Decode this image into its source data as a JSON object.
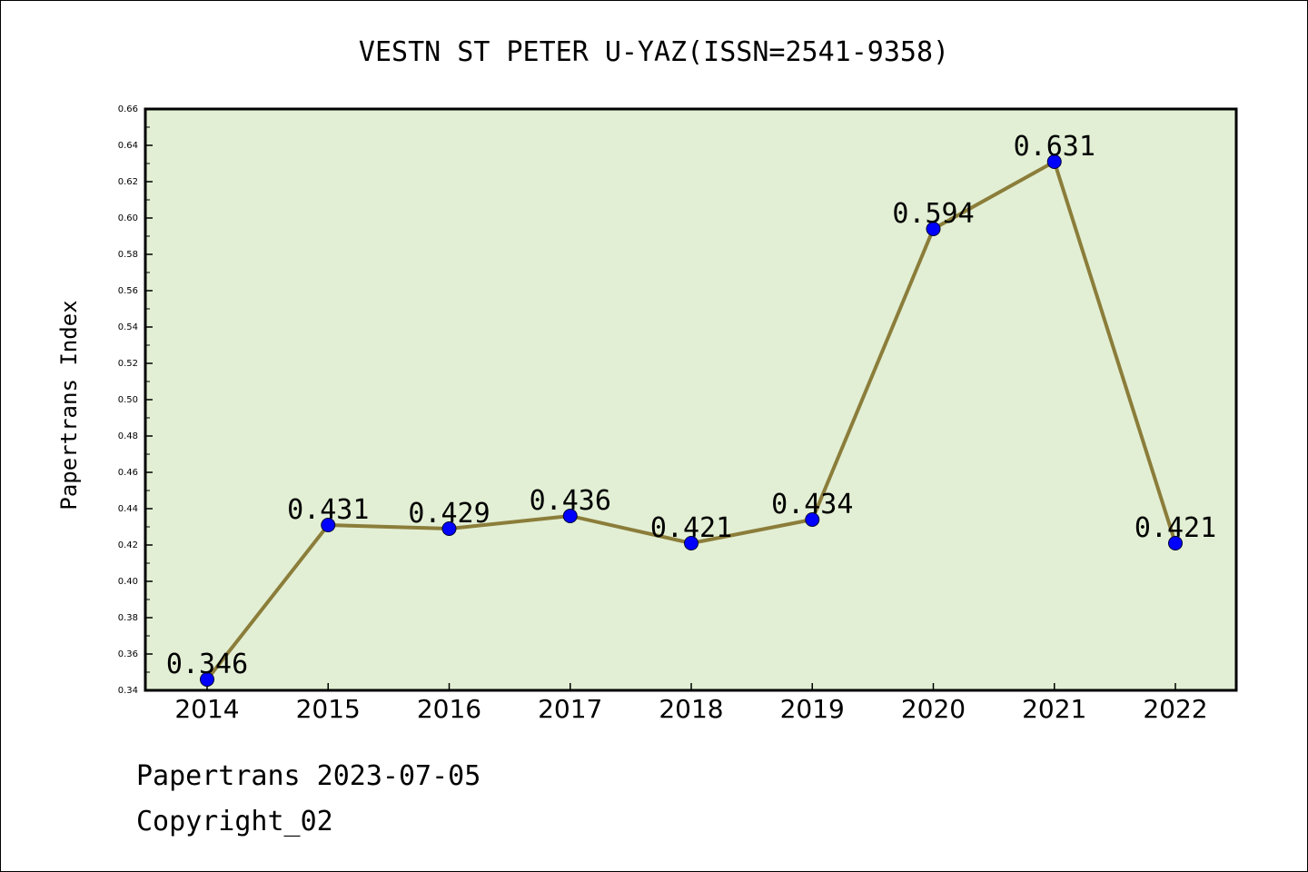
{
  "chart_data": {
    "type": "line",
    "title": "VESTN ST PETER U-YAZ(ISSN=2541-9358)",
    "xlabel": "",
    "ylabel": "Papertrans Index",
    "categories": [
      "2014",
      "2015",
      "2016",
      "2017",
      "2018",
      "2019",
      "2020",
      "2021",
      "2022"
    ],
    "values": [
      0.346,
      0.431,
      0.429,
      0.436,
      0.421,
      0.434,
      0.594,
      0.631,
      0.421
    ],
    "data_labels": [
      "0.346",
      "0.431",
      "0.429",
      "0.436",
      "0.421",
      "0.434",
      "0.594",
      "0.631",
      "0.421"
    ],
    "ylim": [
      0.34,
      0.66
    ],
    "yticks": [
      "0.34",
      "0.36",
      "0.38",
      "0.40",
      "0.42",
      "0.44",
      "0.46",
      "0.48",
      "0.50",
      "0.52",
      "0.54",
      "0.56",
      "0.58",
      "0.60",
      "0.62",
      "0.64",
      "0.66"
    ],
    "grid": false,
    "colors": {
      "line": "#8b7d3a",
      "marker": "#0000ff",
      "plot_background": "#e2efd4"
    }
  },
  "footer": {
    "date_line": "Papertrans 2023-07-05",
    "copyright": "Copyright_02"
  }
}
